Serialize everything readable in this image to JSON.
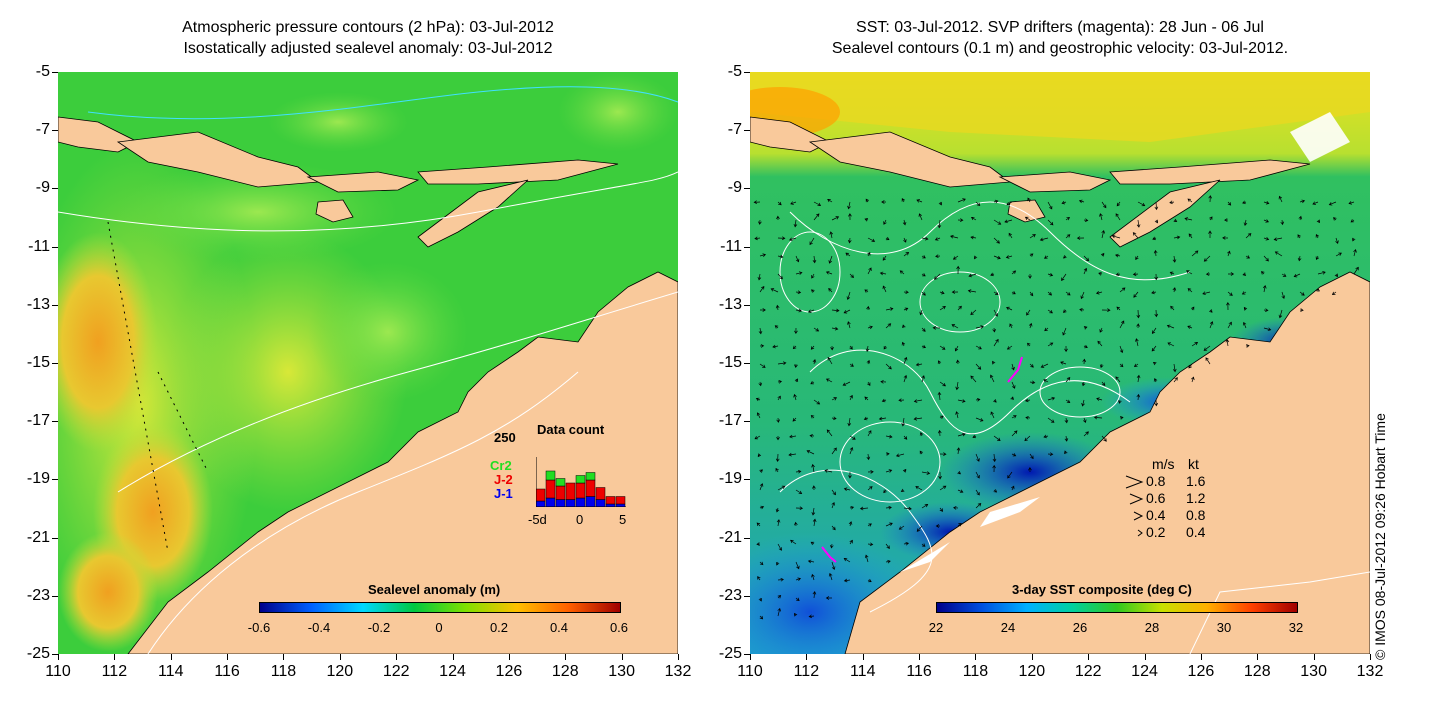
{
  "left_panel": {
    "title_line1": "Atmospheric pressure contours (2 hPa): 03-Jul-2012",
    "title_line2": "Isostatically adjusted sealevel anomaly: 03-Jul-2012",
    "colorbar": {
      "title": "Sealevel anomaly (m)",
      "labels": [
        "-0.6",
        "-0.4",
        "-0.2",
        "0",
        "0.2",
        "0.4",
        "0.6"
      ],
      "colors": [
        "#00008b",
        "#0060ff",
        "#00d8ff",
        "#00c840",
        "#80e000",
        "#ffc000",
        "#ff6000",
        "#a00000"
      ]
    },
    "inset": {
      "title": "Data count",
      "ymax_label": "250",
      "xlabels": [
        "-5d",
        "0",
        "5"
      ],
      "missions": [
        {
          "name": "Cr2",
          "color": "#22dd22"
        },
        {
          "name": "J-2",
          "color": "#ee0000"
        },
        {
          "name": "J-1",
          "color": "#0000ee"
        }
      ],
      "bars": [
        {
          "j1": 20,
          "j2": 40,
          "cr2": 0
        },
        {
          "j1": 30,
          "j2": 60,
          "cr2": 30
        },
        {
          "j1": 25,
          "j2": 45,
          "cr2": 25
        },
        {
          "j1": 25,
          "j2": 55,
          "cr2": 0
        },
        {
          "j1": 30,
          "j2": 50,
          "cr2": 25
        },
        {
          "j1": 35,
          "j2": 55,
          "cr2": 25
        },
        {
          "j1": 25,
          "j2": 40,
          "cr2": 0
        },
        {
          "j1": 10,
          "j2": 25,
          "cr2": 0
        },
        {
          "j1": 10,
          "j2": 25,
          "cr2": 0
        }
      ]
    }
  },
  "right_panel": {
    "title_line1": "SST: 03-Jul-2012. SVP drifters (magenta): 28 Jun - 06 Jul",
    "title_line2": "Sealevel contours (0.1 m) and geostrophic velocity: 03-Jul-2012.",
    "colorbar": {
      "title": "3-day SST composite (deg C)",
      "labels": [
        "22",
        "24",
        "26",
        "28",
        "30",
        "32"
      ],
      "colors": [
        "#00008b",
        "#0050e0",
        "#00b0ff",
        "#00d0a0",
        "#30c820",
        "#c8e000",
        "#ffb000",
        "#ff4000",
        "#a00000"
      ]
    },
    "speed_legend": {
      "header_ms": "m/s",
      "header_kt": "kt",
      "rows": [
        {
          "ms": "0.8",
          "kt": "1.6"
        },
        {
          "ms": "0.6",
          "kt": "1.2"
        },
        {
          "ms": "0.4",
          "kt": "0.8"
        },
        {
          "ms": "0.2",
          "kt": "0.4"
        }
      ]
    }
  },
  "axes": {
    "y_ticks": [
      "-5",
      "-7",
      "-9",
      "-11",
      "-13",
      "-15",
      "-17",
      "-19",
      "-21",
      "-23",
      "-25"
    ],
    "x_ticks": [
      "110",
      "112",
      "114",
      "116",
      "118",
      "120",
      "122",
      "124",
      "126",
      "128",
      "130",
      "132"
    ]
  },
  "copyright": "© IMOS 08-Jul-2012 09:26 Hobart Time",
  "colors": {
    "land": "#f9c99b",
    "ocean_green": "#30d030",
    "ocean_yellow": "#b8e83a",
    "ocean_orange": "#f0a820",
    "sst_green": "#2bc06a",
    "sst_blue": "#2288e8",
    "sst_deep": "#0020c0"
  }
}
